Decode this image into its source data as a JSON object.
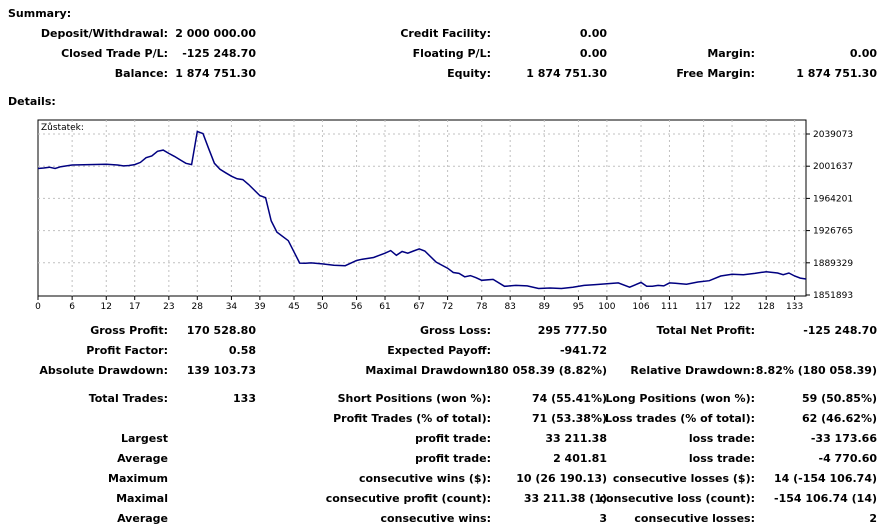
{
  "summary": {
    "heading": "Summary:",
    "deposit_withdrawal": {
      "label": "Deposit/Withdrawal:",
      "value": "2 000 000.00"
    },
    "credit_facility": {
      "label": "Credit Facility:",
      "value": "0.00"
    },
    "closed_trade_pl": {
      "label": "Closed Trade P/L:",
      "value": "-125 248.70"
    },
    "floating_pl": {
      "label": "Floating P/L:",
      "value": "0.00"
    },
    "margin": {
      "label": "Margin:",
      "value": "0.00"
    },
    "balance": {
      "label": "Balance:",
      "value": "1 874 751.30"
    },
    "equity": {
      "label": "Equity:",
      "value": "1 874 751.30"
    },
    "free_margin": {
      "label": "Free Margin:",
      "value": "1 874 751.30"
    }
  },
  "details": {
    "heading": "Details:"
  },
  "chart_data": {
    "type": "line",
    "title": "Zůstatek:",
    "x_ticks": [
      "0",
      "6",
      "12",
      "17",
      "23",
      "28",
      "34",
      "39",
      "45",
      "50",
      "56",
      "61",
      "67",
      "72",
      "78",
      "83",
      "89",
      "95",
      "100",
      "106",
      "111",
      "117",
      "122",
      "128",
      "133"
    ],
    "y_ticks": [
      "2039073",
      "2001637",
      "1964201",
      "1926765",
      "1889329",
      "1851893"
    ],
    "ylim": [
      1851893,
      2039073
    ],
    "xlim": [
      0,
      135
    ],
    "grid": true,
    "series": [
      {
        "color": "#000080",
        "x": [
          0,
          1,
          2,
          3,
          4,
          5,
          6,
          8,
          10,
          12,
          14,
          15,
          16,
          17,
          18,
          19,
          20,
          21,
          22,
          23,
          24,
          25,
          26,
          27,
          28,
          29,
          30,
          31,
          32,
          33,
          34,
          35,
          36,
          37,
          38,
          39,
          40,
          41,
          42,
          44,
          46,
          47,
          48,
          50,
          52,
          54,
          56,
          57,
          58,
          59,
          60,
          61,
          62,
          63,
          64,
          65,
          66,
          67,
          68,
          70,
          72,
          73,
          74,
          75,
          76,
          77,
          78,
          80,
          82,
          84,
          86,
          88,
          90,
          92,
          94,
          96,
          98,
          100,
          102,
          104,
          106,
          107,
          108,
          109,
          110,
          111,
          112,
          113,
          114,
          116,
          118,
          120,
          122,
          124,
          126,
          128,
          130,
          131,
          132,
          133,
          134,
          135
        ],
        "y": [
          1999000,
          1999500,
          2000500,
          1999000,
          2001000,
          2002000,
          2003000,
          2003300,
          2003600,
          2004000,
          2003000,
          2002000,
          2002500,
          2003500,
          2006000,
          2011500,
          2013500,
          2019000,
          2020300,
          2016500,
          2013000,
          2009000,
          2005000,
          2003500,
          2042000,
          2039500,
          2022000,
          2005000,
          1998000,
          1994000,
          1990000,
          1987000,
          1986000,
          1980500,
          1974000,
          1967500,
          1965000,
          1938000,
          1925000,
          1915000,
          1889000,
          1888700,
          1889200,
          1888000,
          1886500,
          1886000,
          1892000,
          1893500,
          1894500,
          1895500,
          1898000,
          1900500,
          1903500,
          1898000,
          1902500,
          1900500,
          1903000,
          1905500,
          1903000,
          1890000,
          1883000,
          1878000,
          1877000,
          1873000,
          1874500,
          1872000,
          1869000,
          1870000,
          1862000,
          1863000,
          1862500,
          1859500,
          1860000,
          1859500,
          1861000,
          1863000,
          1864000,
          1865000,
          1866000,
          1861000,
          1866500,
          1862000,
          1862000,
          1863000,
          1862500,
          1866000,
          1865500,
          1865000,
          1864500,
          1867000,
          1868500,
          1874000,
          1876000,
          1875500,
          1877000,
          1879000,
          1877500,
          1875500,
          1877500,
          1874000,
          1871500,
          1870500
        ]
      }
    ]
  },
  "stats": {
    "gross_profit": {
      "label": "Gross Profit:",
      "value": "170 528.80"
    },
    "gross_loss": {
      "label": "Gross Loss:",
      "value": "295 777.50"
    },
    "total_net_profit": {
      "label": "Total Net Profit:",
      "value": "-125 248.70"
    },
    "profit_factor": {
      "label": "Profit Factor:",
      "value": "0.58"
    },
    "expected_payoff": {
      "label": "Expected Payoff:",
      "value": "-941.72"
    },
    "absolute_drawdown": {
      "label": "Absolute Drawdown:",
      "value": "139 103.73"
    },
    "maximal_drawdown": {
      "label": "Maximal Drawdown:",
      "value": "180 058.39 (8.82%)"
    },
    "relative_drawdown": {
      "label": "Relative Drawdown:",
      "value": "8.82% (180 058.39)"
    },
    "total_trades": {
      "label": "Total Trades:",
      "value": "133"
    },
    "short_positions": {
      "label": "Short Positions (won %):",
      "value": "74 (55.41%)"
    },
    "long_positions": {
      "label": "Long Positions (won %):",
      "value": "59 (50.85%)"
    },
    "profit_trades": {
      "label": "Profit Trades (% of total):",
      "value": "71 (53.38%)"
    },
    "loss_trades": {
      "label": "Loss trades (% of total):",
      "value": "62 (46.62%)"
    },
    "rows": [
      {
        "group": "Largest",
        "pl": "profit trade:",
        "pv": "33 211.38",
        "ll": "loss trade:",
        "lv": "-33 173.66"
      },
      {
        "group": "Average",
        "pl": "profit trade:",
        "pv": "2 401.81",
        "ll": "loss trade:",
        "lv": "-4 770.60"
      },
      {
        "group": "Maximum",
        "pl": "consecutive wins ($):",
        "pv": "10 (26 190.13)",
        "ll": "consecutive losses ($):",
        "lv": "14 (-154 106.74)"
      },
      {
        "group": "Maximal",
        "pl": "consecutive profit (count):",
        "pv": "33 211.38 (1)",
        "ll": "consecutive loss (count):",
        "lv": "-154 106.74 (14)"
      },
      {
        "group": "Average",
        "pl": "consecutive wins:",
        "pv": "3",
        "ll": "consecutive losses:",
        "lv": "2"
      }
    ]
  }
}
